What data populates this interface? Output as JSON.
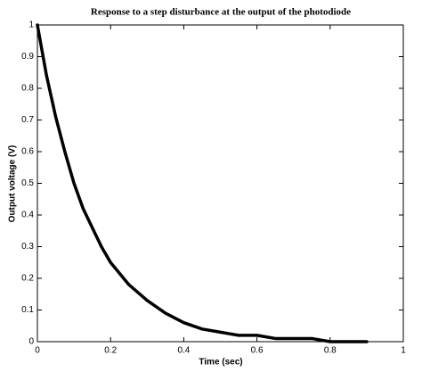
{
  "chart_data": {
    "type": "line",
    "title": "Response to a step disturbance at the output of the photodiode",
    "x_label": "Time (sec)",
    "y_label": "Output voltage (V)",
    "x": [
      0,
      0.025,
      0.05,
      0.075,
      0.1,
      0.125,
      0.15,
      0.175,
      0.2,
      0.25,
      0.3,
      0.35,
      0.4,
      0.45,
      0.5,
      0.55,
      0.6,
      0.65,
      0.7,
      0.75,
      0.8,
      0.85,
      0.9
    ],
    "values": [
      1,
      0.84,
      0.71,
      0.6,
      0.5,
      0.42,
      0.36,
      0.3,
      0.25,
      0.18,
      0.13,
      0.09,
      0.06,
      0.04,
      0.03,
      0.02,
      0.02,
      0.01,
      0.01,
      0.01,
      0,
      0,
      0
    ],
    "color": "#000000",
    "xlim": [
      0,
      1
    ],
    "xticks": [
      0,
      0.2,
      0.4,
      0.6,
      0.8,
      1
    ],
    "ylim": [
      0,
      1
    ],
    "yticks": [
      0,
      0.1,
      0.2,
      0.3,
      0.4,
      0.5,
      0.6,
      0.7,
      0.8,
      0.9,
      1
    ]
  }
}
